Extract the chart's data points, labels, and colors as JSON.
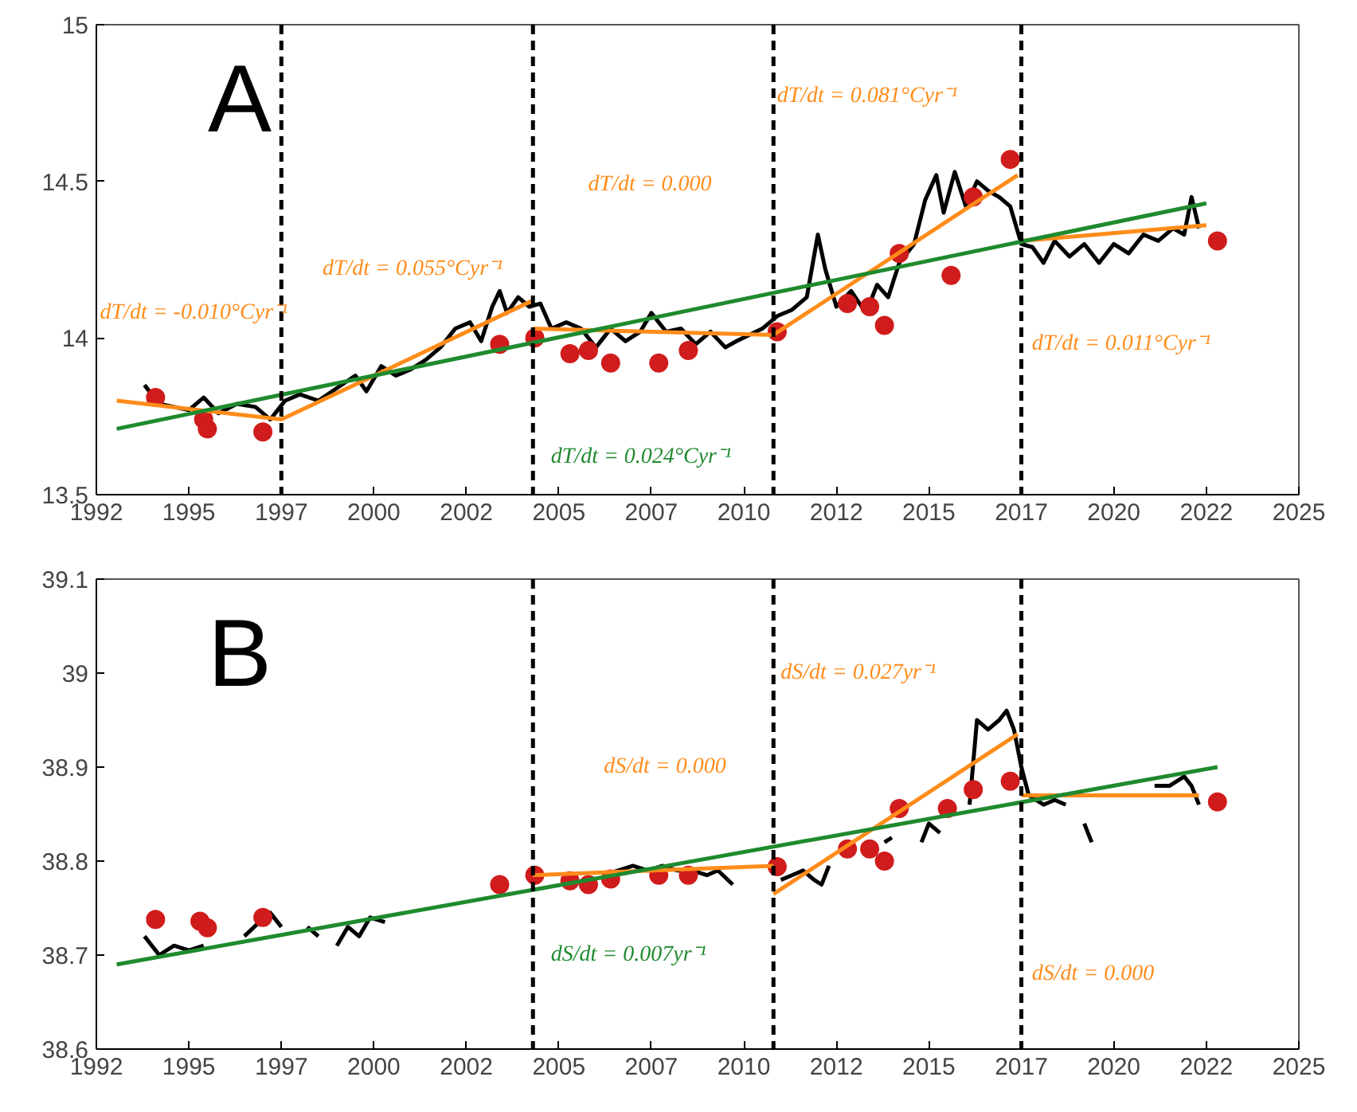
{
  "chart_data": [
    {
      "type": "line",
      "title": "A",
      "xlim": [
        1992.5,
        2025
      ],
      "ylim": [
        13.5,
        15
      ],
      "xticks": [
        {
          "value": 1992.5,
          "label": "1992"
        },
        1995,
        {
          "value": 1997.5,
          "label": "1997"
        },
        2000,
        {
          "value": 2002.5,
          "label": "2002"
        },
        2005,
        {
          "value": 2007.5,
          "label": "2007"
        },
        2010,
        {
          "value": 2012.5,
          "label": "2012"
        },
        2015,
        {
          "value": 2017.5,
          "label": "2017"
        },
        2020,
        {
          "value": 2022.5,
          "label": "2022"
        },
        2025
      ],
      "yticks": [
        13.5,
        14,
        14.5,
        15
      ],
      "grid": false,
      "series": [
        {
          "color": "#000000",
          "x": [
            1993.8,
            1994.2,
            1994.6,
            1995.0,
            1995.4,
            1995.8,
            1996.3,
            1996.8,
            1997.2,
            1997.6,
            1998.0,
            1998.5,
            1999.0,
            1999.5,
            1999.8,
            2000.2,
            2000.6,
            2001.0,
            2001.4,
            2001.8,
            2002.2,
            2002.6,
            2002.9,
            2003.2,
            2003.4,
            2003.6,
            2003.9,
            2004.2,
            2004.5,
            2004.8,
            2005.2,
            2005.6,
            2006.0,
            2006.4,
            2006.8,
            2007.2,
            2007.5,
            2007.9,
            2008.3,
            2008.7,
            2009.1,
            2009.5,
            2009.8,
            2010.5,
            2010.9,
            2011.3,
            2011.7,
            2012.0,
            2012.2,
            2012.5,
            2012.9,
            2013.3,
            2013.6,
            2013.9,
            2014.2,
            2014.6,
            2014.9,
            2015.2,
            2015.4,
            2015.7,
            2016.0,
            2016.3,
            2016.6,
            2016.9,
            2017.2,
            2017.5,
            2017.8,
            2018.1,
            2018.4,
            2018.8,
            2019.2,
            2019.6,
            2020.0,
            2020.4,
            2020.8,
            2021.2,
            2021.6,
            2021.9,
            2022.1,
            2022.3
          ],
          "values": [
            13.85,
            13.79,
            13.78,
            13.77,
            13.81,
            13.76,
            13.79,
            13.78,
            13.74,
            13.8,
            13.82,
            13.8,
            13.84,
            13.88,
            13.83,
            13.91,
            13.88,
            13.9,
            13.93,
            13.97,
            14.03,
            14.05,
            13.99,
            14.1,
            14.15,
            14.08,
            14.13,
            14.1,
            14.11,
            14.03,
            14.05,
            14.03,
            13.97,
            14.03,
            13.99,
            14.02,
            14.08,
            14.02,
            14.03,
            13.98,
            14.02,
            13.97,
            13.99,
            14.03,
            14.07,
            14.09,
            14.13,
            14.33,
            14.22,
            14.1,
            14.15,
            14.08,
            14.17,
            14.13,
            14.24,
            14.3,
            14.44,
            14.52,
            14.4,
            14.53,
            14.42,
            14.5,
            14.47,
            14.45,
            14.42,
            14.3,
            14.29,
            14.24,
            14.31,
            14.26,
            14.3,
            14.24,
            14.3,
            14.27,
            14.33,
            14.31,
            14.35,
            14.33,
            14.45,
            14.35
          ]
        },
        {
          "type": "scatter",
          "color": "#d01c1c",
          "marker": "circle",
          "x": [
            1994.1,
            1995.4,
            1995.5,
            1997.0,
            2003.4,
            2004.35,
            2005.3,
            2005.8,
            2006.4,
            2007.7,
            2008.5,
            2010.9,
            2012.8,
            2013.4,
            2013.8,
            2014.2,
            2015.6,
            2016.2,
            2017.2,
            2022.8
          ],
          "values": [
            13.81,
            13.74,
            13.71,
            13.7,
            13.98,
            14.0,
            13.95,
            13.96,
            13.92,
            13.92,
            13.96,
            14.02,
            14.11,
            14.1,
            14.04,
            14.27,
            14.2,
            14.45,
            14.57,
            14.31
          ]
        },
        {
          "color": "#ff8c1a",
          "x": [
            1993.05,
            1997.5,
            2004.3,
            null,
            2004.3,
            2010.8,
            2017.4,
            null,
            2017.5,
            2022.5
          ],
          "values": [
            13.8,
            13.74,
            14.12,
            null,
            14.03,
            14.01,
            14.52,
            null,
            14.31,
            14.36
          ]
        },
        {
          "color": "#1f8a2e",
          "x": [
            1993.05,
            2022.5
          ],
          "values": [
            13.71,
            14.43
          ]
        }
      ],
      "ref_lines": [
        {
          "axis": "x",
          "value": 1997.5,
          "line_style": "dashed",
          "color": "#000000"
        },
        {
          "axis": "x",
          "value": 2004.3,
          "line_style": "dashed",
          "color": "#000000"
        },
        {
          "axis": "x",
          "value": 2010.8,
          "line_style": "dashed",
          "color": "#000000"
        },
        {
          "axis": "x",
          "value": 2017.5,
          "line_style": "dashed",
          "color": "#000000"
        }
      ],
      "annotations": [
        "dT/dt = -0.010°Cyr⁻¹",
        "dT/dt = 0.055°Cyr⁻¹",
        "dT/dt = 0.000",
        "dT/dt = 0.081°Cyr⁻¹",
        "dT/dt = 0.011°Cyr⁻¹",
        "dT/dt = 0.024°Cyr⁻¹"
      ]
    },
    {
      "type": "line",
      "title": "B",
      "xlim": [
        1992.5,
        2025
      ],
      "ylim": [
        38.6,
        39.1
      ],
      "xticks": [
        {
          "value": 1992.5,
          "label": "1992"
        },
        1995,
        {
          "value": 1997.5,
          "label": "1997"
        },
        2000,
        {
          "value": 2002.5,
          "label": "2002"
        },
        2005,
        {
          "value": 2007.5,
          "label": "2007"
        },
        2010,
        {
          "value": 2012.5,
          "label": "2012"
        },
        2015,
        {
          "value": 2017.5,
          "label": "2017"
        },
        2020,
        {
          "value": 2022.5,
          "label": "2022"
        },
        2025
      ],
      "yticks": [
        38.6,
        38.7,
        38.8,
        38.9,
        39,
        39.1
      ],
      "grid": false,
      "series": [
        {
          "color": "#000000",
          "x": [
            1993.8,
            1994.2,
            1994.6,
            1995.0,
            1995.4,
            null,
            1996.5,
            1996.9,
            1997.2,
            1997.5,
            null,
            1998.2,
            1998.5,
            null,
            1999.0,
            1999.3,
            1999.6,
            1999.9,
            2000.3,
            null,
            2006.2,
            2006.6,
            2007.0,
            2007.4,
            2007.8,
            2008.2,
            2008.6,
            2009.0,
            2009.3,
            2009.7,
            null,
            2011.0,
            2011.3,
            2011.6,
            2011.9,
            2012.1,
            2012.3,
            null,
            2013.8,
            2014.0,
            null,
            2014.8,
            2015.0,
            2015.3,
            null,
            2016.1,
            2016.3,
            2016.6,
            2016.9,
            2017.1,
            2017.3,
            2017.5,
            2017.7,
            2018.1,
            2018.4,
            2018.7,
            null,
            2019.2,
            2019.4,
            null,
            2021.1,
            2021.5,
            2021.9,
            2022.1,
            2022.3
          ],
          "values": [
            38.72,
            38.7,
            38.71,
            38.705,
            38.71,
            null,
            38.72,
            38.735,
            38.745,
            38.73,
            null,
            38.73,
            38.72,
            null,
            38.71,
            38.73,
            38.72,
            38.74,
            38.735,
            null,
            38.785,
            38.79,
            38.795,
            38.79,
            38.795,
            38.79,
            38.79,
            38.785,
            38.79,
            38.775,
            null,
            38.78,
            38.785,
            38.79,
            38.78,
            38.775,
            38.795,
            null,
            38.82,
            38.825,
            null,
            38.82,
            38.84,
            38.83,
            null,
            38.86,
            38.95,
            38.94,
            38.95,
            38.96,
            38.94,
            38.9,
            38.87,
            38.86,
            38.865,
            38.86,
            null,
            38.84,
            38.82,
            null,
            38.88,
            38.88,
            38.89,
            38.88,
            38.86
          ]
        },
        {
          "type": "scatter",
          "color": "#d01c1c",
          "marker": "circle",
          "x": [
            1994.1,
            1995.3,
            1995.5,
            1997.0,
            2003.4,
            2004.35,
            2005.3,
            2005.8,
            2006.4,
            2007.7,
            2008.5,
            2010.9,
            2012.8,
            2013.4,
            2013.8,
            2014.2,
            2015.5,
            2016.2,
            2017.2,
            2022.8
          ],
          "values": [
            38.738,
            38.736,
            38.729,
            38.74,
            38.775,
            38.785,
            38.779,
            38.775,
            38.781,
            38.785,
            38.785,
            38.794,
            38.813,
            38.813,
            38.8,
            38.856,
            38.856,
            38.876,
            38.885,
            38.863
          ]
        },
        {
          "color": "#ff8c1a",
          "x": [
            2004.3,
            2010.8,
            null,
            2010.8,
            2017.4,
            null,
            2017.5,
            2022.3
          ],
          "values": [
            38.785,
            38.795,
            null,
            38.765,
            38.935,
            null,
            38.87,
            38.87
          ]
        },
        {
          "color": "#1f8a2e",
          "x": [
            1993.05,
            2022.8
          ],
          "values": [
            38.69,
            38.9
          ]
        }
      ],
      "ref_lines": [
        {
          "axis": "x",
          "value": 2004.3,
          "line_style": "dashed",
          "color": "#000000"
        },
        {
          "axis": "x",
          "value": 2010.8,
          "line_style": "dashed",
          "color": "#000000"
        },
        {
          "axis": "x",
          "value": 2017.5,
          "line_style": "dashed",
          "color": "#000000"
        }
      ],
      "annotations": [
        "dS/dt = 0.000",
        "dS/dt = 0.027yr⁻¹",
        "dS/dt = 0.000",
        "dS/dt = 0.007yr⁻¹"
      ]
    }
  ]
}
